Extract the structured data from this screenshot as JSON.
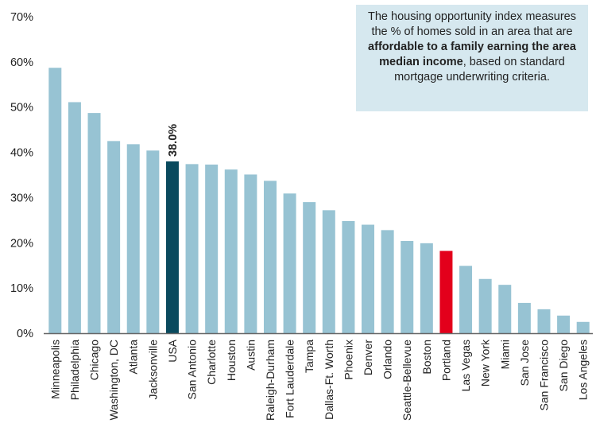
{
  "note": {
    "part1": "The housing opportunity index measures the % of homes sold in an area that are ",
    "bold": "affordable to a family earning the area median income",
    "part2": ", based on standard mortgage underwriting criteria."
  },
  "colors": {
    "default": "#97c3d3",
    "usa": "#0a4a5e",
    "portland": "#e3001b",
    "axis": "#666666"
  },
  "chart_data": {
    "type": "bar",
    "title": "",
    "xlabel": "",
    "ylabel": "",
    "ylim": [
      0,
      70
    ],
    "yticks": [
      "0%",
      "10%",
      "20%",
      "30%",
      "40%",
      "50%",
      "60%",
      "70%"
    ],
    "grid": false,
    "categories": [
      "Minneapolis",
      "Philadelphia",
      "Chicago",
      "Washington, DC",
      "Atlanta",
      "Jacksonville",
      "USA",
      "San Antonio",
      "Charlotte",
      "Houston",
      "Austin",
      "Raleigh-Durham",
      "Fort Lauderdale",
      "Tampa",
      "Dallas-Ft. Worth",
      "Phoenix",
      "Denver",
      "Orlando",
      "Seattle-Bellevue",
      "Boston",
      "Portland",
      "Las Vegas",
      "New York",
      "Miami",
      "San Jose",
      "San Francisco",
      "San Diego",
      "Los Angeles"
    ],
    "values": [
      58.7,
      51.1,
      48.7,
      42.5,
      41.8,
      40.4,
      38.0,
      37.4,
      37.3,
      36.2,
      35.1,
      33.7,
      30.9,
      29.0,
      27.2,
      24.8,
      24.0,
      22.8,
      20.4,
      19.9,
      18.2,
      14.9,
      12.0,
      10.7,
      6.7,
      5.3,
      3.9,
      2.5
    ],
    "highlighted": {
      "USA": "usa",
      "Portland": "portland"
    },
    "data_labels": [
      {
        "category": "USA",
        "text": "38.0%"
      }
    ]
  }
}
